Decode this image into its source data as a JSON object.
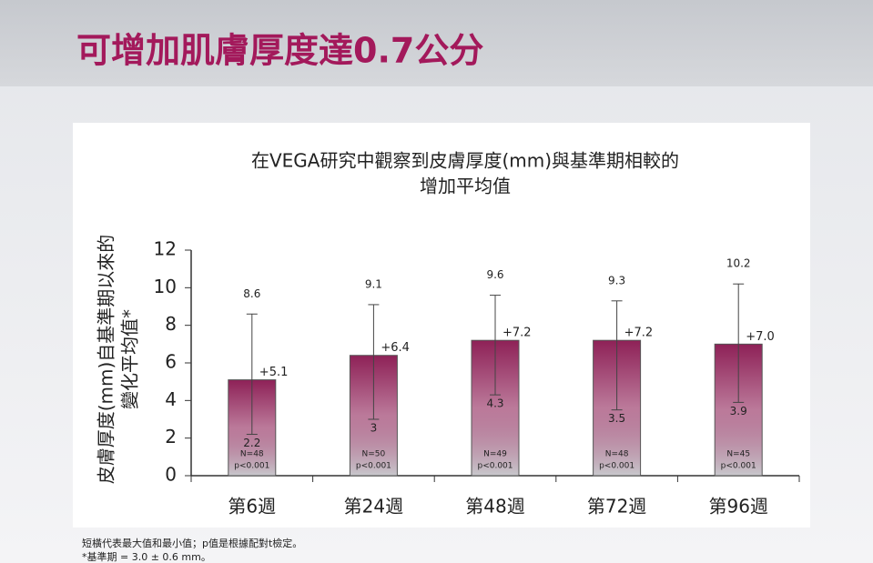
{
  "page_title": "可增加肌膚厚度達0.7公分",
  "chart_data": {
    "type": "bar",
    "title": [
      "在VEGA研究中觀察到皮膚厚度(mm)與基準期相較的",
      "增加平均值"
    ],
    "y_label": [
      "皮膚厚度(mm)自基準期以來的",
      "變化平均值*"
    ],
    "categories": [
      "第6週",
      "第24週",
      "第48週",
      "第72週",
      "第96週"
    ],
    "series": [
      {
        "color": "#8e2157",
        "values": [
          5.1,
          6.4,
          7.2,
          7.2,
          7.0
        ],
        "value_labels": [
          "+5.1",
          "+6.4",
          "+7.2",
          "+7.2",
          "+7.0"
        ],
        "max": [
          8.6,
          9.1,
          9.6,
          9.3,
          10.2
        ],
        "min": [
          2.2,
          3.0,
          4.3,
          3.5,
          3.9
        ],
        "n_labels": [
          "N=48",
          "N=50",
          "N=49",
          "N=48",
          "N=45"
        ],
        "p_labels": [
          "p<0.001",
          "p<0.001",
          "p<0.001",
          "p<0.001",
          "p<0.001"
        ]
      }
    ],
    "ylim": [
      0,
      12
    ],
    "yticks": [
      0,
      2,
      4,
      6,
      8,
      10,
      12
    ],
    "grid": false
  },
  "footnotes": [
    "短橫代表最大值和最小值；p值是根據配對t檢定。",
    "*基準期 = 3.0 ± 0.6 mm。"
  ]
}
